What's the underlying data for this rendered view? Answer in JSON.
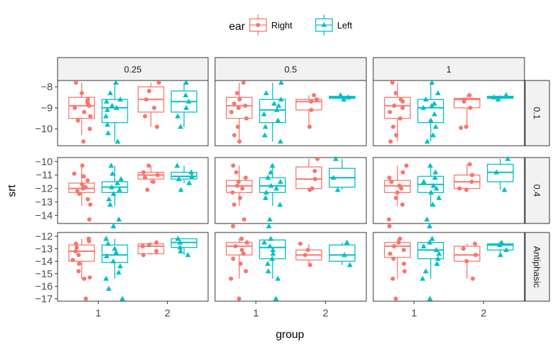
{
  "chart_data": {
    "type": "box",
    "xlabel": "group",
    "ylabel": "srt",
    "legend": {
      "title": "ear",
      "placement": "top",
      "entries": [
        {
          "name": "Right",
          "color": "#F8766D",
          "marker": "circle"
        },
        {
          "name": "Left",
          "color": "#00BFC4",
          "marker": "triangle"
        }
      ]
    },
    "x_categories": [
      "1",
      "2"
    ],
    "col_facets": [
      "0.25",
      "0.5",
      "1"
    ],
    "row_facets": [
      {
        "label": "0.1",
        "ylim": [
          -10.8,
          -7.7
        ],
        "ticks": [
          -8,
          -9,
          -10
        ]
      },
      {
        "label": "0.4",
        "ylim": [
          -14.6,
          -9.7
        ],
        "ticks": [
          -10,
          -11,
          -12,
          -13,
          -14
        ]
      },
      {
        "label": "Antiphasic",
        "ylim": [
          -17.2,
          -11.7
        ],
        "ticks": [
          -12,
          -13,
          -14,
          -15,
          -16,
          -17
        ]
      }
    ],
    "series": [
      "Right",
      "Left"
    ],
    "panels": [
      {
        "row": 0,
        "col": 0,
        "group": "1",
        "ear": "Right",
        "box": {
          "q1": -9.5,
          "median": -8.9,
          "q3": -8.5,
          "whisker_low": -10.3,
          "whisker_high": -7.8
        },
        "points": [
          -7.8,
          -8.3,
          -8.6,
          -8.8,
          -8.9,
          -9.0,
          -9.2,
          -9.4,
          -9.6,
          -10.0,
          -10.6,
          -8.7
        ]
      },
      {
        "row": 0,
        "col": 0,
        "group": "1",
        "ear": "Left",
        "box": {
          "q1": -9.7,
          "median": -9.0,
          "q3": -8.6,
          "whisker_low": -10.6,
          "whisker_high": -7.8
        },
        "points": [
          -7.8,
          -8.3,
          -8.6,
          -8.9,
          -9.0,
          -9.1,
          -9.4,
          -9.8,
          -10.2,
          -10.6,
          -8.7
        ]
      },
      {
        "row": 0,
        "col": 0,
        "group": "2",
        "ear": "Right",
        "box": {
          "q1": -9.2,
          "median": -8.6,
          "q3": -8.0,
          "whisker_low": -9.9,
          "whisker_high": -7.8
        },
        "points": [
          -7.8,
          -8.2,
          -8.6,
          -9.0,
          -9.4,
          -9.9
        ]
      },
      {
        "row": 0,
        "col": 0,
        "group": "2",
        "ear": "Left",
        "box": {
          "q1": -9.2,
          "median": -8.7,
          "q3": -8.2,
          "whisker_low": -9.9,
          "whisker_high": -7.8
        },
        "points": [
          -7.8,
          -8.4,
          -8.7,
          -9.0,
          -9.4,
          -9.9
        ]
      },
      {
        "row": 0,
        "col": 1,
        "group": "1",
        "ear": "Right",
        "box": {
          "q1": -9.5,
          "median": -8.9,
          "q3": -8.5,
          "whisker_low": -10.6,
          "whisker_high": -7.8
        },
        "points": [
          -7.8,
          -8.3,
          -8.6,
          -8.8,
          -9.0,
          -9.2,
          -9.5,
          -9.9,
          -10.3,
          -10.6,
          -8.9
        ]
      },
      {
        "row": 0,
        "col": 1,
        "group": "1",
        "ear": "Left",
        "box": {
          "q1": -9.7,
          "median": -9.1,
          "q3": -8.6,
          "whisker_low": -10.6,
          "whisker_high": -7.8
        },
        "points": [
          -7.8,
          -8.3,
          -8.6,
          -8.9,
          -9.1,
          -9.3,
          -9.6,
          -9.9,
          -10.3,
          -10.6,
          -8.8
        ]
      },
      {
        "row": 0,
        "col": 1,
        "group": "2",
        "ear": "Right",
        "box": {
          "q1": -9.1,
          "median": -8.7,
          "q3": -8.6,
          "whisker_low": -9.9,
          "whisker_high": -8.4
        },
        "points": [
          -8.4,
          -8.6,
          -8.7,
          -9.1,
          -9.9
        ]
      },
      {
        "row": 0,
        "col": 1,
        "group": "2",
        "ear": "Left",
        "box": {
          "q1": -8.55,
          "median": -8.5,
          "q3": -8.45,
          "whisker_low": -8.6,
          "whisker_high": -8.4
        },
        "points": [
          -8.4,
          -8.5,
          -8.6
        ]
      },
      {
        "row": 0,
        "col": 2,
        "group": "1",
        "ear": "Right",
        "box": {
          "q1": -9.5,
          "median": -8.9,
          "q3": -8.5,
          "whisker_low": -10.6,
          "whisker_high": -7.8
        },
        "points": [
          -7.8,
          -8.3,
          -8.6,
          -8.9,
          -9.0,
          -9.2,
          -9.5,
          -9.9,
          -10.3,
          -10.6,
          -8.7
        ]
      },
      {
        "row": 0,
        "col": 2,
        "group": "1",
        "ear": "Left",
        "box": {
          "q1": -9.7,
          "median": -9.0,
          "q3": -8.6,
          "whisker_low": -10.6,
          "whisker_high": -7.8
        },
        "points": [
          -7.8,
          -8.3,
          -8.6,
          -8.9,
          -9.0,
          -9.3,
          -9.6,
          -9.9,
          -10.3,
          -10.6,
          -8.8
        ]
      },
      {
        "row": 0,
        "col": 2,
        "group": "2",
        "ear": "Right",
        "box": {
          "q1": -9.0,
          "median": -8.6,
          "q3": -8.55,
          "whisker_low": -9.9,
          "whisker_high": -8.4
        },
        "points": [
          -8.4,
          -8.6,
          -8.7,
          -9.0,
          -9.9,
          -9.95
        ]
      },
      {
        "row": 0,
        "col": 2,
        "group": "2",
        "ear": "Left",
        "box": {
          "q1": -8.55,
          "median": -8.5,
          "q3": -8.45,
          "whisker_low": -8.6,
          "whisker_high": -8.4
        },
        "points": [
          -8.4,
          -8.5,
          -8.6
        ]
      },
      {
        "row": 1,
        "col": 0,
        "group": "1",
        "ear": "Right",
        "box": {
          "q1": -12.3,
          "median": -12.0,
          "q3": -11.6,
          "whisker_low": -13.3,
          "whisker_high": -10.3
        },
        "points": [
          -10.3,
          -10.9,
          -11.4,
          -11.7,
          -11.9,
          -12.0,
          -12.2,
          -12.4,
          -12.8,
          -13.2,
          -14.3,
          -11.1
        ]
      },
      {
        "row": 1,
        "col": 0,
        "group": "1",
        "ear": "Left",
        "box": {
          "q1": -12.3,
          "median": -11.9,
          "q3": -11.5,
          "whisker_low": -13.3,
          "whisker_high": -10.3
        },
        "points": [
          -10.3,
          -10.9,
          -11.3,
          -11.6,
          -11.9,
          -12.1,
          -12.4,
          -12.8,
          -13.2,
          -14.3,
          -14.8
        ]
      },
      {
        "row": 1,
        "col": 0,
        "group": "2",
        "ear": "Right",
        "box": {
          "q1": -11.3,
          "median": -11.0,
          "q3": -10.8,
          "whisker_low": -11.6,
          "whisker_high": -10.3
        },
        "points": [
          -10.3,
          -10.8,
          -11.0,
          -11.2,
          -11.5,
          -12.1
        ]
      },
      {
        "row": 1,
        "col": 0,
        "group": "2",
        "ear": "Left",
        "box": {
          "q1": -11.3,
          "median": -11.1,
          "q3": -10.8,
          "whisker_low": -11.6,
          "whisker_high": -10.3
        },
        "points": [
          -10.3,
          -10.8,
          -11.1,
          -11.3,
          -11.6,
          -12.1
        ]
      },
      {
        "row": 1,
        "col": 1,
        "group": "1",
        "ear": "Right",
        "box": {
          "q1": -12.3,
          "median": -11.8,
          "q3": -11.4,
          "whisker_low": -13.3,
          "whisker_high": -10.3
        },
        "points": [
          -10.3,
          -10.8,
          -11.2,
          -11.5,
          -11.8,
          -12.0,
          -12.3,
          -12.7,
          -13.2,
          -14.3,
          -14.8
        ]
      },
      {
        "row": 1,
        "col": 1,
        "group": "1",
        "ear": "Left",
        "box": {
          "q1": -12.3,
          "median": -11.8,
          "q3": -11.2,
          "whisker_low": -13.3,
          "whisker_high": -10.3
        },
        "points": [
          -10.3,
          -10.8,
          -11.2,
          -11.5,
          -11.8,
          -12.0,
          -12.3,
          -12.7,
          -13.2,
          -14.3,
          -14.8
        ]
      },
      {
        "row": 1,
        "col": 1,
        "group": "2",
        "ear": "Right",
        "box": {
          "q1": -12.0,
          "median": -11.3,
          "q3": -10.4,
          "whisker_low": -12.1,
          "whisker_high": -9.8
        },
        "points": [
          -9.8,
          -10.7,
          -11.3,
          -12.0,
          -12.1
        ]
      },
      {
        "row": 1,
        "col": 1,
        "group": "2",
        "ear": "Left",
        "box": {
          "q1": -11.9,
          "median": -11.2,
          "q3": -10.5,
          "whisker_low": -12.1,
          "whisker_high": -9.8
        },
        "points": [
          -9.8,
          -11.2,
          -12.1
        ]
      },
      {
        "row": 1,
        "col": 2,
        "group": "1",
        "ear": "Right",
        "box": {
          "q1": -12.3,
          "median": -11.8,
          "q3": -11.4,
          "whisker_low": -13.3,
          "whisker_high": -10.3
        },
        "points": [
          -10.3,
          -10.8,
          -11.2,
          -11.5,
          -11.8,
          -12.0,
          -12.3,
          -12.7,
          -13.2,
          -14.3,
          -14.8
        ]
      },
      {
        "row": 1,
        "col": 2,
        "group": "1",
        "ear": "Left",
        "box": {
          "q1": -12.3,
          "median": -11.7,
          "q3": -11.1,
          "whisker_low": -13.3,
          "whisker_high": -10.3
        },
        "points": [
          -10.3,
          -10.8,
          -11.2,
          -11.5,
          -11.8,
          -12.0,
          -12.3,
          -12.7,
          -13.2,
          -14.3,
          -14.8
        ]
      },
      {
        "row": 1,
        "col": 2,
        "group": "2",
        "ear": "Right",
        "box": {
          "q1": -12.0,
          "median": -11.5,
          "q3": -11.0,
          "whisker_low": -12.1,
          "whisker_high": -10.2
        },
        "points": [
          -10.2,
          -11.0,
          -11.5,
          -12.0,
          -12.1
        ]
      },
      {
        "row": 1,
        "col": 2,
        "group": "2",
        "ear": "Left",
        "box": {
          "q1": -11.5,
          "median": -10.8,
          "q3": -10.2,
          "whisker_low": -12.1,
          "whisker_high": -9.8
        },
        "points": [
          -9.8,
          -10.8,
          -12.1
        ]
      },
      {
        "row": 2,
        "col": 0,
        "group": "1",
        "ear": "Right",
        "box": {
          "q1": -14.0,
          "median": -13.2,
          "q3": -12.7,
          "whisker_low": -15.4,
          "whisker_high": -12.2
        },
        "points": [
          -12.2,
          -12.6,
          -12.9,
          -13.2,
          -13.5,
          -13.9,
          -14.2,
          -14.8,
          -15.3,
          -15.4,
          -17.0,
          -12.4
        ]
      },
      {
        "row": 2,
        "col": 0,
        "group": "1",
        "ear": "Left",
        "box": {
          "q1": -14.1,
          "median": -13.5,
          "q3": -12.7,
          "whisker_low": -15.4,
          "whisker_high": -12.2
        },
        "points": [
          -12.2,
          -12.6,
          -13.0,
          -13.3,
          -13.6,
          -14.0,
          -14.4,
          -14.9,
          -15.4,
          -17.0,
          -16.2
        ]
      },
      {
        "row": 2,
        "col": 0,
        "group": "2",
        "ear": "Right",
        "box": {
          "q1": -13.4,
          "median": -12.8,
          "q3": -12.6,
          "whisker_low": -13.5,
          "whisker_high": -12.5
        },
        "points": [
          -12.5,
          -12.7,
          -12.8,
          -13.2,
          -13.5
        ]
      },
      {
        "row": 2,
        "col": 0,
        "group": "2",
        "ear": "Left",
        "box": {
          "q1": -12.9,
          "median": -12.5,
          "q3": -12.2,
          "whisker_low": -13.5,
          "whisker_high": -12.2
        },
        "points": [
          -12.2,
          -12.5,
          -12.9,
          -13.2,
          -13.5
        ]
      },
      {
        "row": 2,
        "col": 1,
        "group": "1",
        "ear": "Right",
        "box": {
          "q1": -13.5,
          "median": -12.8,
          "q3": -12.5,
          "whisker_low": -15.4,
          "whisker_high": -12.2
        },
        "points": [
          -12.2,
          -12.5,
          -12.8,
          -13.1,
          -13.4,
          -13.8,
          -14.2,
          -14.8,
          -15.4,
          -17.0
        ]
      },
      {
        "row": 2,
        "col": 1,
        "group": "1",
        "ear": "Left",
        "box": {
          "q1": -13.8,
          "median": -12.9,
          "q3": -12.3,
          "whisker_low": -15.4,
          "whisker_high": -12.2
        },
        "points": [
          -12.2,
          -12.5,
          -12.8,
          -13.1,
          -13.4,
          -13.8,
          -14.2,
          -14.8,
          -15.4,
          -17.0
        ]
      },
      {
        "row": 2,
        "col": 1,
        "group": "2",
        "ear": "Right",
        "box": {
          "q1": -13.9,
          "median": -13.5,
          "q3": -13.1,
          "whisker_low": -14.3,
          "whisker_high": -12.6
        },
        "points": [
          -12.6,
          -13.1,
          -13.5,
          -14.3
        ]
      },
      {
        "row": 2,
        "col": 1,
        "group": "2",
        "ear": "Left",
        "box": {
          "q1": -14.0,
          "median": -13.5,
          "q3": -12.7,
          "whisker_low": -14.3,
          "whisker_high": -12.5
        },
        "points": [
          -12.5,
          -13.5,
          -14.3
        ]
      },
      {
        "row": 2,
        "col": 2,
        "group": "1",
        "ear": "Right",
        "box": {
          "q1": -13.7,
          "median": -12.8,
          "q3": -12.5,
          "whisker_low": -15.4,
          "whisker_high": -12.2
        },
        "points": [
          -12.2,
          -12.5,
          -12.8,
          -13.1,
          -13.4,
          -13.8,
          -14.2,
          -14.8,
          -15.4,
          -17.0
        ]
      },
      {
        "row": 2,
        "col": 2,
        "group": "1",
        "ear": "Left",
        "box": {
          "q1": -13.8,
          "median": -13.1,
          "q3": -12.5,
          "whisker_low": -15.4,
          "whisker_high": -12.2
        },
        "points": [
          -12.2,
          -12.5,
          -12.8,
          -13.1,
          -13.4,
          -13.8,
          -14.2,
          -14.8,
          -15.4,
          -17.0
        ]
      },
      {
        "row": 2,
        "col": 2,
        "group": "2",
        "ear": "Right",
        "box": {
          "q1": -14.0,
          "median": -13.5,
          "q3": -12.8,
          "whisker_low": -15.4,
          "whisker_high": -12.6
        },
        "points": [
          -12.6,
          -13.0,
          -13.5,
          -14.0,
          -15.4
        ]
      },
      {
        "row": 2,
        "col": 2,
        "group": "2",
        "ear": "Left",
        "box": {
          "q1": -13.1,
          "median": -12.7,
          "q3": -12.6,
          "whisker_low": -13.5,
          "whisker_high": -12.5
        },
        "points": [
          -12.5,
          -12.6,
          -12.7,
          -13.1,
          -13.5
        ]
      }
    ]
  }
}
